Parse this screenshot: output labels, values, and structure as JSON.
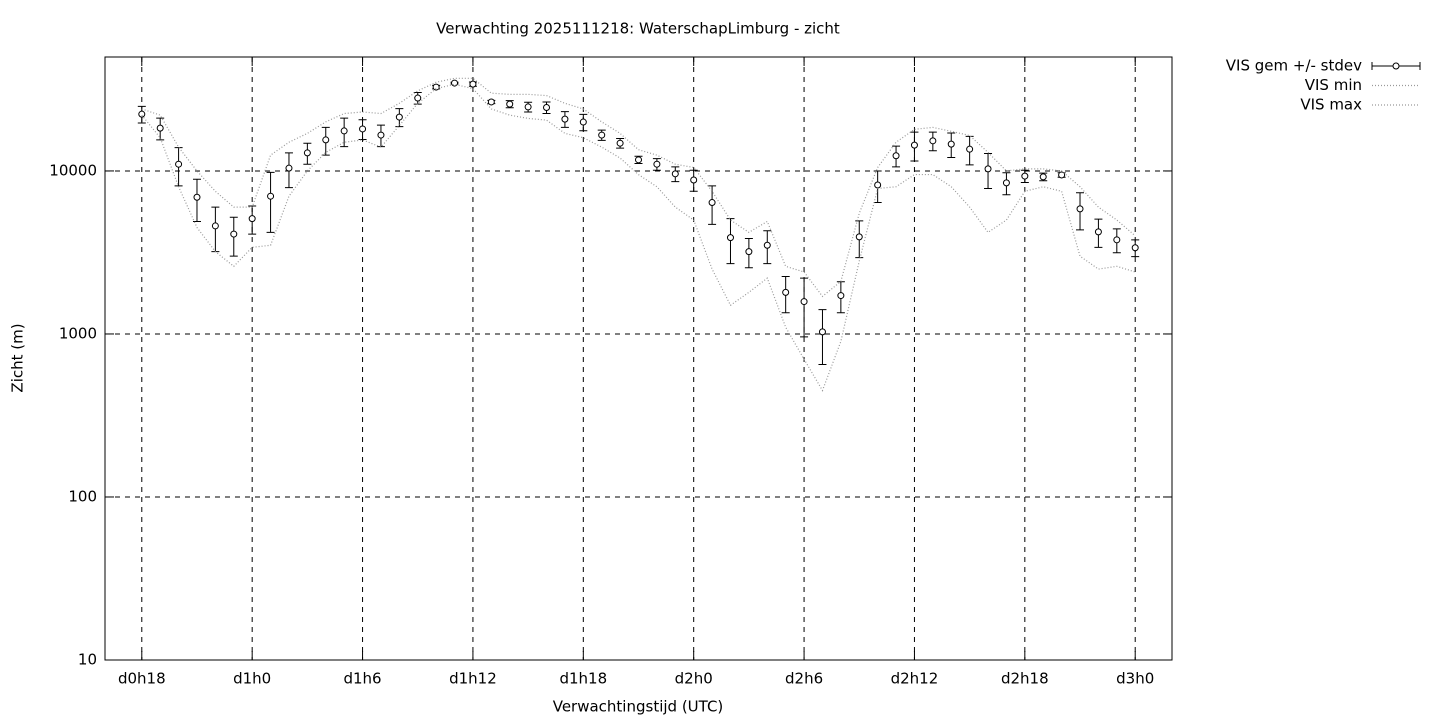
{
  "chart_data": {
    "type": "errorbar",
    "title": "Verwachting 2025111218: WaterschapLimburg - zicht",
    "x_label": "Verwachtingstijd (UTC)",
    "y_label": "Zicht (m)",
    "log_y": true,
    "grid": true,
    "legend": "outside-top-right",
    "xlim": [
      16,
      74
    ],
    "xticks": [
      {
        "value": 18,
        "label": "d0h18"
      },
      {
        "value": 24,
        "label": "d1h0"
      },
      {
        "value": 30,
        "label": "d1h6"
      },
      {
        "value": 36,
        "label": "d1h12"
      },
      {
        "value": 42,
        "label": "d1h18"
      },
      {
        "value": 48,
        "label": "d2h0"
      },
      {
        "value": 54,
        "label": "d2h6"
      },
      {
        "value": 60,
        "label": "d2h12"
      },
      {
        "value": 66,
        "label": "d2h18"
      },
      {
        "value": 72,
        "label": "d3h0"
      }
    ],
    "ylim": [
      10,
      50000
    ],
    "yticks": [
      10,
      100,
      1000,
      10000
    ],
    "x": [
      18,
      19,
      20,
      21,
      22,
      23,
      24,
      25,
      26,
      27,
      28,
      29,
      30,
      31,
      32,
      33,
      34,
      35,
      36,
      37,
      38,
      39,
      40,
      41,
      42,
      43,
      44,
      45,
      46,
      47,
      48,
      49,
      50,
      51,
      52,
      53,
      54,
      55,
      56,
      57,
      58,
      59,
      60,
      61,
      62,
      63,
      64,
      65,
      66,
      67,
      68,
      69,
      70,
      71,
      72
    ],
    "series": [
      {
        "name": "VIS gem +/- stdev",
        "color": "#000000",
        "values": [
          22300,
          18300,
          11000,
          6900,
          4600,
          4100,
          5100,
          7000,
          10400,
          12900,
          15500,
          17600,
          18100,
          16600,
          21400,
          28000,
          32700,
          34600,
          34100,
          26500,
          25700,
          24700,
          24500,
          20800,
          19950,
          16600,
          14800,
          11700,
          11000,
          9600,
          8800,
          6400,
          3900,
          3200,
          3500,
          1800,
          1580,
          1030,
          1720,
          3940,
          8200,
          12400,
          14400,
          15300,
          14600,
          13600,
          10300,
          8450,
          9300,
          9200,
          9450,
          5850,
          4230,
          3780,
          3380
        ],
        "errors": [
          2600,
          2800,
          2900,
          2000,
          1400,
          1100,
          1000,
          2800,
          2500,
          1900,
          3000,
          3500,
          2500,
          2500,
          2700,
          2300,
          800,
          400,
          1000,
          600,
          1300,
          1700,
          2000,
          2300,
          2300,
          1200,
          1000,
          600,
          900,
          1000,
          1300,
          1700,
          1200,
          650,
          800,
          450,
          620,
          380,
          370,
          1000,
          1800,
          1800,
          2900,
          2000,
          2500,
          2700,
          2500,
          1300,
          800,
          500,
          300,
          1500,
          830,
          630,
          400
        ]
      },
      {
        "name": "VIS min",
        "color": "#999999",
        "values": [
          22000,
          16000,
          8000,
          4500,
          3200,
          2600,
          3400,
          3500,
          7000,
          10000,
          13000,
          15000,
          15500,
          14000,
          19000,
          26000,
          32000,
          34000,
          32000,
          24000,
          22000,
          21000,
          20500,
          17000,
          16000,
          14000,
          12000,
          9500,
          8000,
          6000,
          5000,
          2500,
          1500,
          1800,
          2200,
          1100,
          700,
          450,
          900,
          2800,
          7800,
          8000,
          9500,
          9500,
          8000,
          6000,
          4200,
          5000,
          7500,
          8000,
          7500,
          3000,
          2500,
          2600,
          2400
        ]
      },
      {
        "name": "VIS max",
        "color": "#999999",
        "values": [
          24000,
          22000,
          14000,
          10000,
          7500,
          6000,
          6000,
          12500,
          15000,
          17000,
          20000,
          22500,
          23000,
          22500,
          26000,
          31000,
          35000,
          37000,
          37000,
          30000,
          29500,
          29500,
          29000,
          26000,
          24000,
          20000,
          17000,
          13500,
          12500,
          11000,
          10500,
          7500,
          5000,
          4200,
          4900,
          2600,
          2400,
          1700,
          2100,
          5500,
          10500,
          15000,
          18000,
          18500,
          17500,
          16500,
          13000,
          10000,
          10300,
          10300,
          10000,
          8000,
          6000,
          5000,
          4000
        ]
      }
    ]
  }
}
